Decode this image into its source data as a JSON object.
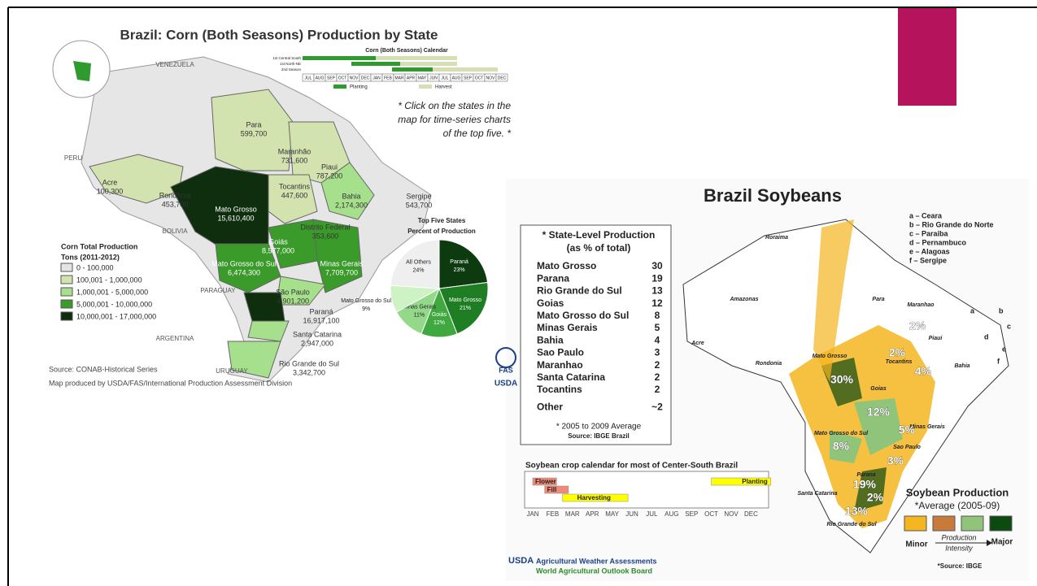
{
  "corn_map": {
    "title": "Brazil: Corn (Both Seasons) Production by State",
    "calendar": {
      "title": "Corn (Both Seasons) Calendar",
      "rows": [
        "1st Central South",
        "1st North-NE",
        "2nd Season"
      ],
      "months": [
        "JUL",
        "AUG",
        "SEP",
        "OCT",
        "NOV",
        "DEC",
        "JAN",
        "FEB",
        "MAR",
        "APR",
        "MAY",
        "JUN",
        "JUL",
        "AUG",
        "SEP",
        "OCT",
        "NOV",
        "DEC"
      ],
      "legend": [
        "Planting",
        "Harvest"
      ]
    },
    "note": [
      "* Click on the states in the",
      "map for time-series charts",
      "of the top five. *"
    ],
    "countries": [
      "VENEZUELA",
      "PERU",
      "BOLIVIA",
      "PARAGUAY",
      "ARGENTINA",
      "URUGUAY"
    ],
    "states": [
      {
        "name": "Para",
        "value": "599,700"
      },
      {
        "name": "Maranhão",
        "value": "731,600"
      },
      {
        "name": "Piaui",
        "value": "787,200"
      },
      {
        "name": "Acre",
        "value": "100,300"
      },
      {
        "name": "Rondônia",
        "value": "453,700"
      },
      {
        "name": "Tocantins",
        "value": "447,600"
      },
      {
        "name": "Mato Grosso",
        "value": "15,610,400"
      },
      {
        "name": "Bahia",
        "value": "2,174,300"
      },
      {
        "name": "Sergipe",
        "value": "543,700"
      },
      {
        "name": "Distrito Federal",
        "value": "353,600"
      },
      {
        "name": "Goiás",
        "value": "8,577,000"
      },
      {
        "name": "Minas Gerais",
        "value": "7,709,700"
      },
      {
        "name": "Mato Grosso do Sul",
        "value": "6,474,300"
      },
      {
        "name": "São Paulo",
        "value": "4,901,200"
      },
      {
        "name": "Paraná",
        "value": "16,917,100"
      },
      {
        "name": "Santa Catarina",
        "value": "2,947,000"
      },
      {
        "name": "Rio Grande do Sul",
        "value": "3,342,700"
      }
    ],
    "legend": {
      "title": [
        "Corn Total Production",
        "Tons (2011-2012)"
      ],
      "items": [
        {
          "label": "0 - 100,000",
          "color": "#e4e4e4"
        },
        {
          "label": "100,001 - 1,000,000",
          "color": "#d3e3b0"
        },
        {
          "label": "1,000,001 - 5,000,000",
          "color": "#a6e08c"
        },
        {
          "label": "5,000,001 - 10,000,000",
          "color": "#3a9a2a"
        },
        {
          "label": "10,000,001 - 17,000,000",
          "color": "#0e2e0e"
        }
      ]
    },
    "pie": {
      "title": [
        "Top Five States",
        "Percent of Production"
      ],
      "slices": [
        {
          "name": "Paraná",
          "value": 23,
          "value_label": "23%",
          "color": "#0e3a10"
        },
        {
          "name": "Mato Grosso",
          "value": 21,
          "value_label": "21%",
          "color": "#1f7d23"
        },
        {
          "name": "Goiás",
          "value": 12,
          "value_label": "12%",
          "color": "#3fa83f"
        },
        {
          "name": "Minas Gerais",
          "value": 11,
          "value_label": "11%",
          "color": "#94d98a"
        },
        {
          "name": "Mato Grosso do Sul",
          "value": 9,
          "value_label": "9%",
          "color": "#cdf2c3"
        },
        {
          "name": "All Others",
          "value": 24,
          "value_label": "24%",
          "color": "#efefef"
        }
      ]
    },
    "source": [
      "Source: CONAB-Historical Series",
      "Map produced by USDA/FAS/International Production Assessment Division"
    ],
    "logo": [
      "FAS",
      "USDA"
    ]
  },
  "soy_map": {
    "title": "Brazil Soybeans",
    "table": {
      "title": [
        "* State-Level Production",
        "(as % of total)"
      ],
      "rows": [
        [
          "Mato Grosso",
          "30"
        ],
        [
          "Parana",
          "19"
        ],
        [
          "Rio Grande do Sul",
          "13"
        ],
        [
          "Goias",
          "12"
        ],
        [
          "Mato Grosso do Sul",
          "8"
        ],
        [
          "Minas Gerais",
          "5"
        ],
        [
          "Bahia",
          "4"
        ],
        [
          "Sao Paulo",
          "3"
        ],
        [
          "Maranhao",
          "2"
        ],
        [
          "Santa Catarina",
          "2"
        ],
        [
          "Tocantins",
          "2"
        ],
        [
          "Other",
          "~2"
        ]
      ],
      "footnote": [
        "* 2005 to 2009 Average",
        "Source: IBGE Brazil"
      ]
    },
    "calendar": {
      "title": "Soybean crop calendar for most of Center-South Brazil",
      "phases": [
        "Flower",
        "Fill",
        "Harvesting",
        "Planting"
      ],
      "months": [
        "JAN",
        "FEB",
        "MAR",
        "APR",
        "MAY",
        "JUN",
        "JUL",
        "AUG",
        "SEP",
        "OCT",
        "NOV",
        "DEC"
      ]
    },
    "letters": [
      "a – Ceara",
      "b – Rio Grande do Norte",
      "c – Paraiba",
      "d – Pernambuco",
      "e – Alagoas",
      "f – Sergipe"
    ],
    "map_letters": [
      "a",
      "b",
      "c",
      "d",
      "e",
      "f"
    ],
    "states": [
      "Roraima",
      "Amazonas",
      "Para",
      "Maranhao",
      "Acre",
      "Rondonia",
      "Mato Grosso",
      "Tocantins",
      "Piaui",
      "Bahia",
      "Goias",
      "Minas Gerais",
      "Mato Grosso do Sul",
      "Sao Paulo",
      "Parana",
      "Santa Catarina",
      "Rio Grande do Sul"
    ],
    "percentages": [
      "2%",
      "2%",
      "4%",
      "30%",
      "12%",
      "5%",
      "8%",
      "3%",
      "19%",
      "2%",
      "13%"
    ],
    "legend": {
      "title": "Soybean Production",
      "subtitle": "*Average (2005-09)",
      "colors": [
        "#f5b520",
        "#c87a3a",
        "#8fc47a",
        "#0d4a12"
      ],
      "minor": "Minor",
      "major": "Major",
      "intensity": [
        "Production",
        "Intensity"
      ],
      "source": "*Source: IBGE"
    },
    "footer": [
      "USDA",
      "Agricultural Weather Assessments",
      "World Agricultural Outlook Board"
    ]
  }
}
